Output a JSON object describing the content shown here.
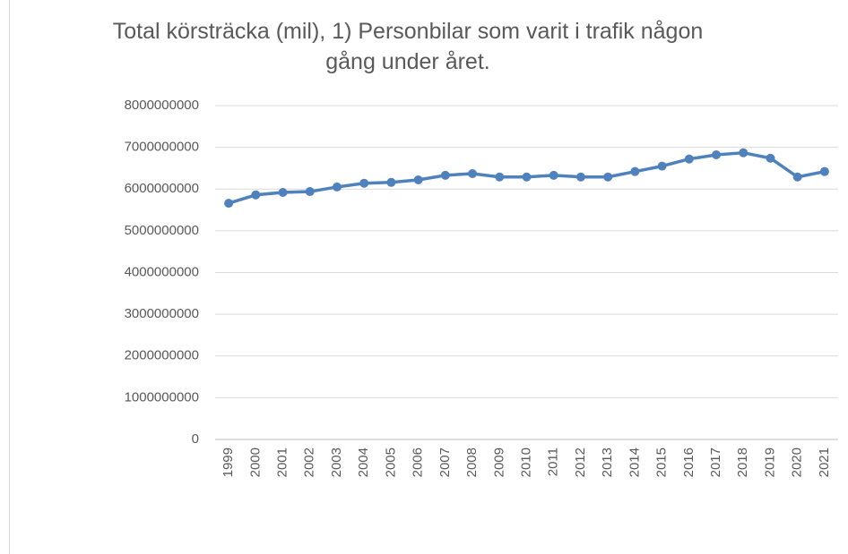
{
  "chart_data": {
    "type": "line",
    "title": "Total körsträcka (mil), 1) Personbilar som varit i trafik någon gång under året.",
    "categories": [
      "1999",
      "2000",
      "2001",
      "2002",
      "2003",
      "2004",
      "2005",
      "2006",
      "2007",
      "2008",
      "2009",
      "2010",
      "2011",
      "2012",
      "2013",
      "2014",
      "2015",
      "2016",
      "2017",
      "2018",
      "2019",
      "2020",
      "2021"
    ],
    "series": [
      {
        "color": "#4f81bd",
        "values": [
          5660000000,
          5860000000,
          5920000000,
          5940000000,
          6050000000,
          6140000000,
          6160000000,
          6220000000,
          6330000000,
          6370000000,
          6290000000,
          6290000000,
          6330000000,
          6290000000,
          6290000000,
          6420000000,
          6550000000,
          6720000000,
          6820000000,
          6870000000,
          6740000000,
          6290000000,
          6420000000
        ]
      }
    ],
    "ylim": [
      0,
      8000000000
    ],
    "yticks": [
      0,
      1000000000,
      2000000000,
      3000000000,
      4000000000,
      5000000000,
      6000000000,
      7000000000,
      8000000000
    ],
    "grid": true
  }
}
